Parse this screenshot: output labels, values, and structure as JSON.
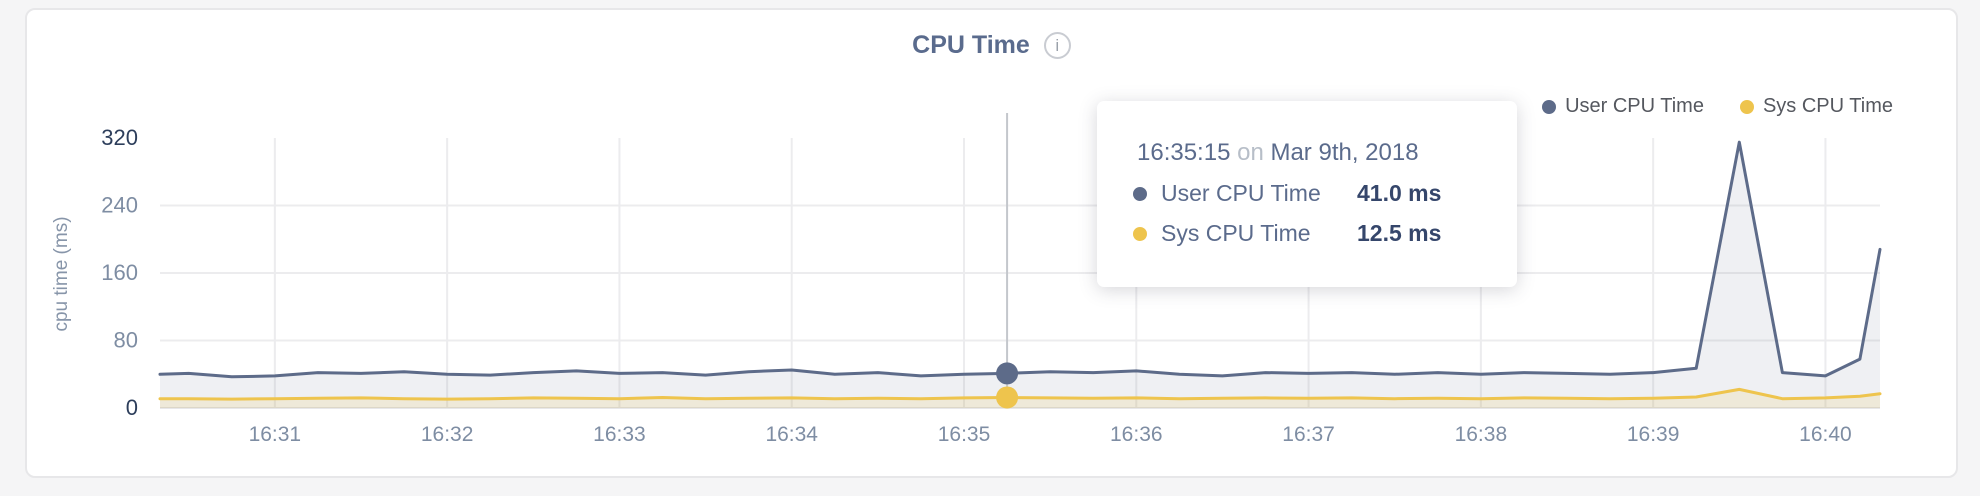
{
  "card": {
    "title": "CPU Time",
    "info_glyph": "i"
  },
  "axis": {
    "ylabel": "cpu time (ms)",
    "tick_color": "#7e8da3",
    "tick_strong_color": "#2d3e5b",
    "grid_color": "#ececee",
    "baseline_color": "#e7e7e9",
    "hover_line_color": "#c4c7cc"
  },
  "tooltip": {
    "time": "16:35:15",
    "conjunction": "on",
    "date": "Mar 9th, 2018",
    "rows": [
      {
        "label": "User CPU Time",
        "value": "41.0 ms"
      },
      {
        "label": "Sys CPU Time",
        "value": "12.5 ms"
      }
    ]
  },
  "chart_data": {
    "type": "area",
    "title": "CPU Time",
    "ylabel": "cpu time (ms)",
    "ylim": [
      0,
      320
    ],
    "y_ticks": [
      0,
      80,
      160,
      240,
      320
    ],
    "x_tick_labels": [
      "16:31",
      "16:32",
      "16:33",
      "16:34",
      "16:35",
      "16:36",
      "16:37",
      "16:38",
      "16:39",
      "16:40"
    ],
    "grid": true,
    "legend_position": "top-right",
    "x": [
      "16:30:20",
      "16:30:30",
      "16:30:45",
      "16:31:00",
      "16:31:15",
      "16:31:30",
      "16:31:45",
      "16:32:00",
      "16:32:15",
      "16:32:30",
      "16:32:45",
      "16:33:00",
      "16:33:15",
      "16:33:30",
      "16:33:45",
      "16:34:00",
      "16:34:15",
      "16:34:30",
      "16:34:45",
      "16:35:00",
      "16:35:15",
      "16:35:30",
      "16:35:45",
      "16:36:00",
      "16:36:15",
      "16:36:30",
      "16:36:45",
      "16:37:00",
      "16:37:15",
      "16:37:30",
      "16:37:45",
      "16:38:00",
      "16:38:15",
      "16:38:30",
      "16:38:45",
      "16:39:00",
      "16:39:15",
      "16:39:30",
      "16:39:45",
      "16:40:00",
      "16:40:12",
      "16:40:19"
    ],
    "series": [
      {
        "name": "User CPU Time",
        "color": "#5d6b89",
        "fill": "rgba(99,112,140,0.10)",
        "values": [
          40,
          41,
          37,
          38,
          42,
          41,
          43,
          40,
          39,
          42,
          44,
          41,
          42,
          39,
          43,
          45,
          40,
          42,
          38,
          40,
          41,
          43,
          42,
          44,
          40,
          38,
          42,
          41,
          42,
          40,
          42,
          40,
          42,
          41,
          40,
          42,
          47,
          315,
          42,
          38,
          58,
          188
        ]
      },
      {
        "name": "Sys CPU Time",
        "color": "#eec44d",
        "fill": "rgba(238,197,80,0.16)",
        "values": [
          11,
          11,
          10.5,
          11,
          11.5,
          12,
          11,
          10.5,
          11,
          12,
          11.5,
          11,
          12.5,
          11,
          11.5,
          12,
          11,
          11.5,
          11,
          12,
          12.5,
          12,
          11.5,
          12,
          11,
          11.5,
          12,
          11.5,
          12,
          11,
          11.5,
          11,
          12,
          11.5,
          11,
          11.5,
          13,
          22,
          11,
          12,
          14,
          17
        ]
      }
    ],
    "hover": {
      "x": "16:35:15",
      "values": [
        41.0,
        12.5
      ]
    }
  }
}
